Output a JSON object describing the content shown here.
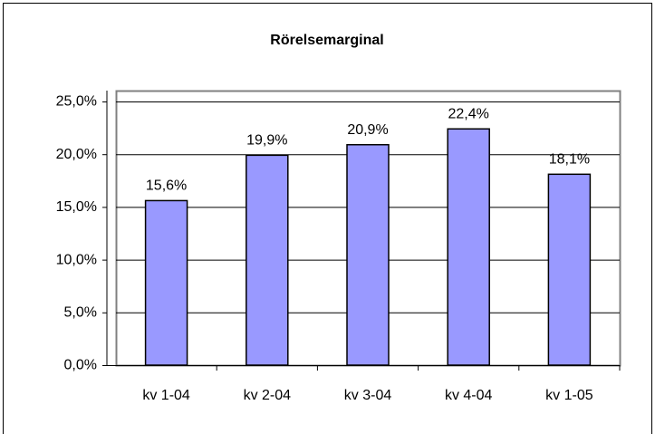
{
  "chart_data": {
    "type": "bar",
    "title": "Rörelsemarginal",
    "categories": [
      "kv 1-04",
      "kv 2-04",
      "kv 3-04",
      "kv 4-04",
      "kv 1-05"
    ],
    "values": [
      15.6,
      19.9,
      20.9,
      22.4,
      18.1
    ],
    "value_labels": [
      "15,6%",
      "19,9%",
      "20,9%",
      "22,4%",
      "18,1%"
    ],
    "color": "#9999ff",
    "ylim": [
      0,
      25
    ],
    "yticks": [
      {
        "value": 0,
        "label": "0,0%"
      },
      {
        "value": 5,
        "label": "5,0%"
      },
      {
        "value": 10,
        "label": "10,0%"
      },
      {
        "value": 15,
        "label": "15,0%"
      },
      {
        "value": 20,
        "label": "20,0%"
      },
      {
        "value": 25,
        "label": "25,0%"
      }
    ],
    "grid": true
  }
}
